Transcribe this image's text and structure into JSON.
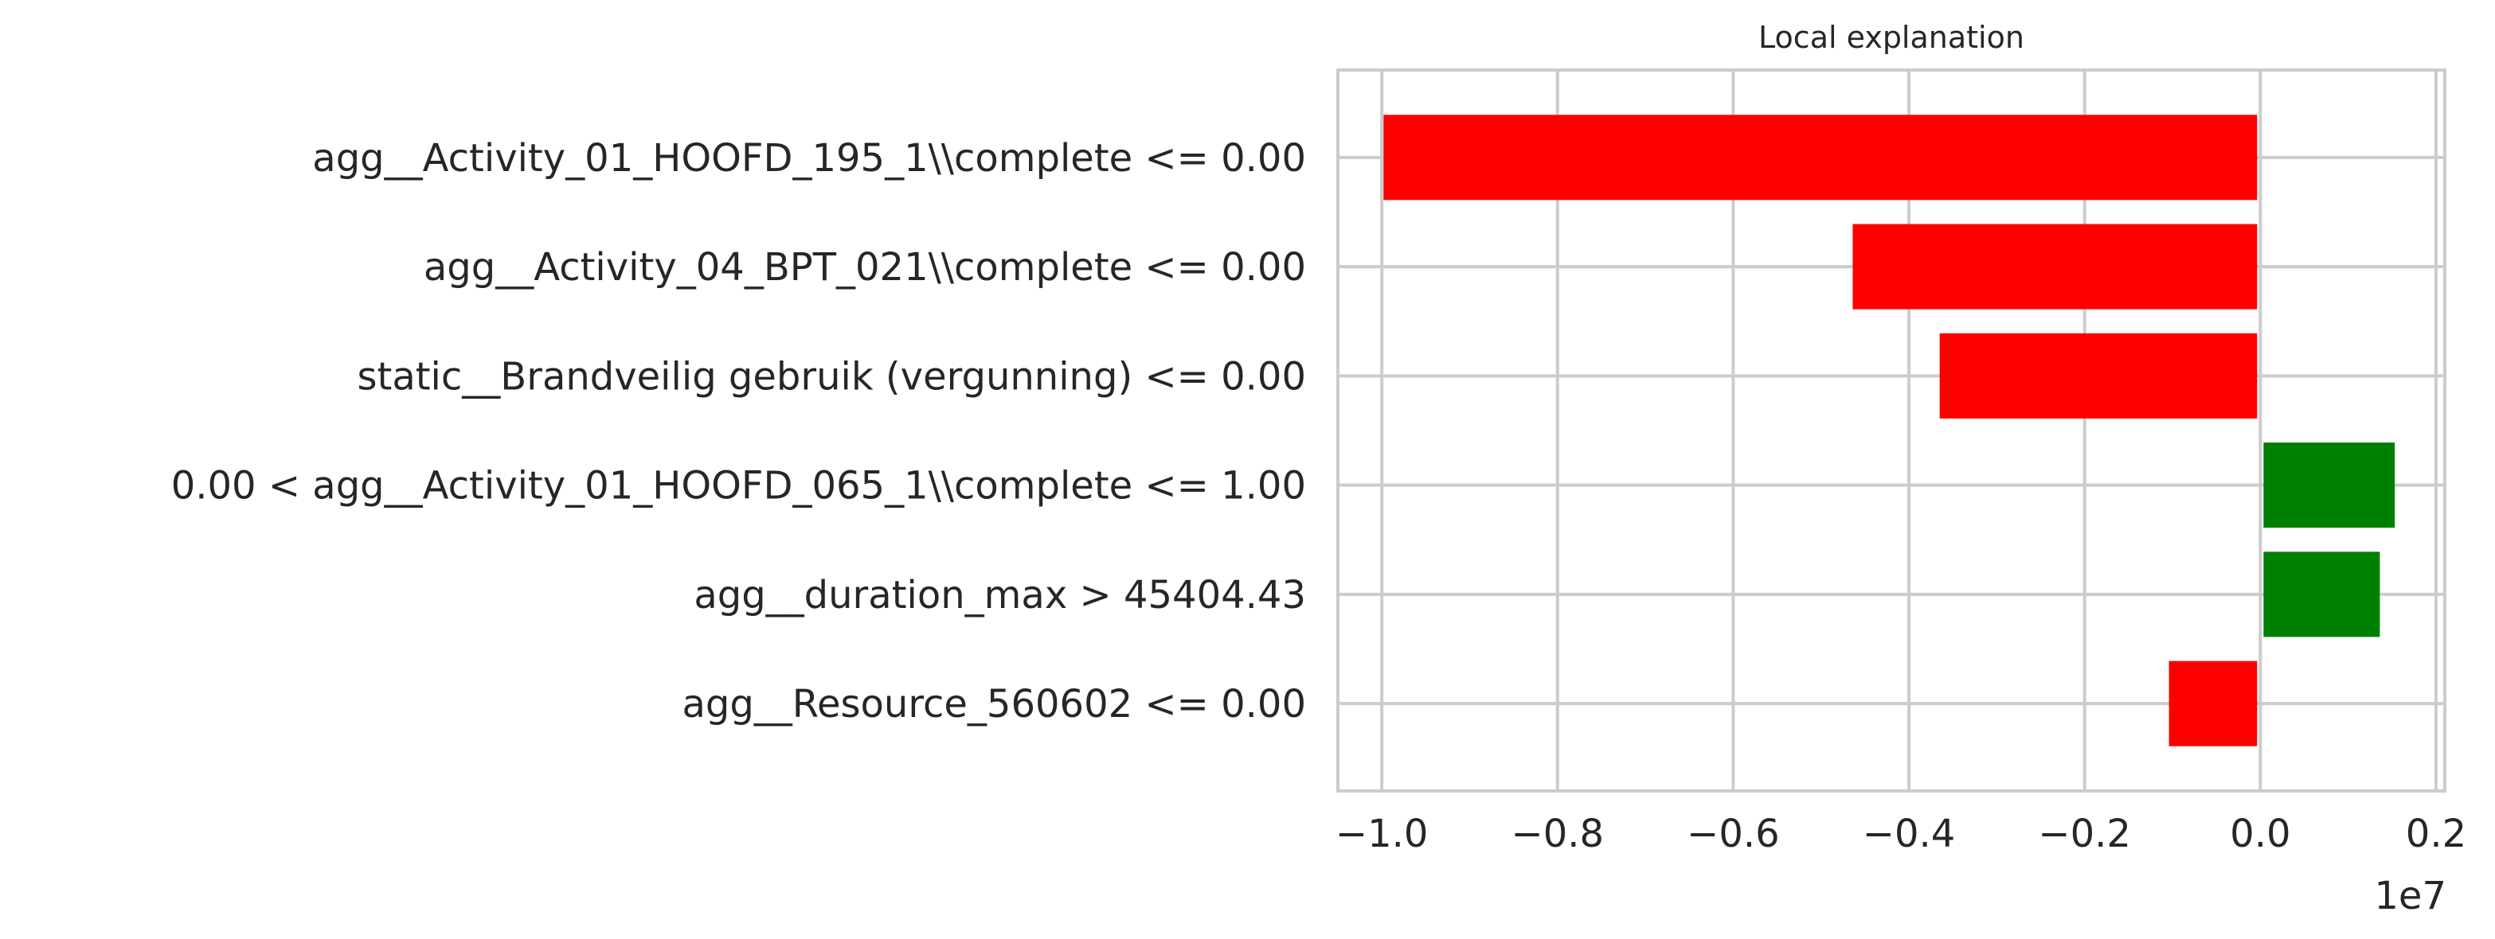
{
  "chart_data": {
    "type": "bar",
    "orientation": "horizontal",
    "title": "Local explanation",
    "xlabel": "",
    "ylabel": "",
    "x_offset_label": "1e7",
    "xlim": [
      -1.05,
      0.21
    ],
    "xticks": [
      -1.0,
      -0.8,
      -0.6,
      -0.4,
      -0.2,
      0.0,
      0.2
    ],
    "xtick_labels": [
      "−1.0",
      "−0.8",
      "−0.6",
      "−0.4",
      "−0.2",
      "0.0",
      "0.2"
    ],
    "grid": true,
    "categories": [
      "agg__Activity_01_HOOFD_195_1\\\\complete <= 0.00",
      "agg__Activity_04_BPT_021\\\\complete <= 0.00",
      "static__Brandveilig gebruik (vergunning) <= 0.00",
      "0.00 < agg__Activity_01_HOOFD_065_1\\\\complete <= 1.00",
      "agg__duration_max > 45404.43",
      "agg__Resource_560602 <= 0.00"
    ],
    "values": [
      -0.998,
      -0.464,
      -0.365,
      0.153,
      0.136,
      -0.104
    ],
    "colors": {
      "negative": "#ff0000",
      "positive": "#008000",
      "grid": "#cccccc",
      "spine": "#cccccc"
    }
  }
}
